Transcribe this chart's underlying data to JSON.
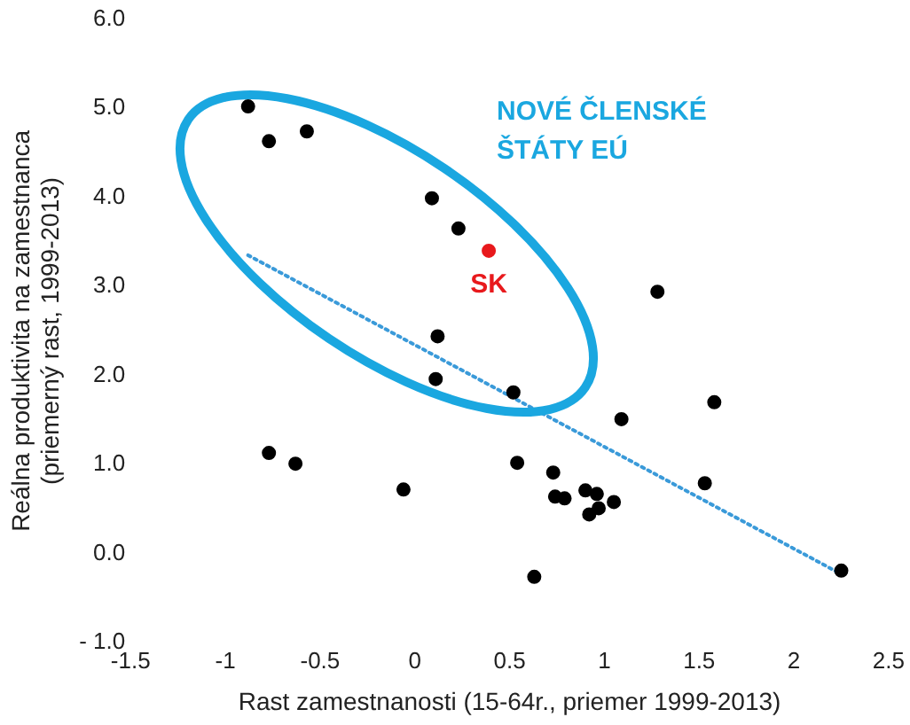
{
  "chart_data": {
    "type": "scatter",
    "xlabel": "Rast zamestnanosti (15-64r., priemer 1999-2013)",
    "ylabel": "Reálna produktivita na zamestnanca\n(priemerný rast, 1999-2013)",
    "xlim": [
      -1.5,
      2.5
    ],
    "xticks": [
      -1.5,
      -1,
      -0.5,
      0,
      0.5,
      1,
      1.5,
      2,
      2.5
    ],
    "ylim": [
      -1,
      6
    ],
    "yticks": [
      {
        "value": -1,
        "label": "- 1.0"
      },
      {
        "value": 0,
        "label": "0.0"
      },
      {
        "value": 1,
        "label": "1.0"
      },
      {
        "value": 2,
        "label": "2.0"
      },
      {
        "value": 3,
        "label": "3.0"
      },
      {
        "value": 4,
        "label": "4.0"
      },
      {
        "value": 5,
        "label": "5.0"
      },
      {
        "value": 6,
        "label": "6.0"
      }
    ],
    "grid": false,
    "legend": false,
    "marker": "circle",
    "series": [
      {
        "color": "#000000",
        "x": [
          -0.88,
          -0.77,
          -0.57,
          0.09,
          0.23,
          0.12,
          0.11,
          0.52,
          1.28,
          1.58,
          1.09,
          0.54,
          -0.06,
          0.73,
          0.74,
          0.79,
          0.9,
          0.96,
          0.97,
          0.92,
          1.05,
          1.53,
          0.63,
          2.25,
          -0.77,
          -0.63
        ],
        "values": [
          5.02,
          4.63,
          4.74,
          3.99,
          3.65,
          2.44,
          1.96,
          1.81,
          2.94,
          1.7,
          1.51,
          1.02,
          0.72,
          0.91,
          0.64,
          0.62,
          0.71,
          0.67,
          0.51,
          0.44,
          0.58,
          0.79,
          -0.26,
          -0.19,
          1.13,
          1.01
        ]
      },
      {
        "color": "#e8191c",
        "x": [
          0.39
        ],
        "values": [
          3.4
        ]
      },
      {
        "type": "line",
        "color": "#3a9ad9",
        "line_style": "dotted",
        "marker": "none",
        "x": [
          -0.88,
          2.25
        ],
        "values": [
          3.35,
          -0.23
        ]
      }
    ],
    "annotations": [
      "NOVÉ ČLENSKÉ\nŠTÁTY EÚ",
      {
        "text": "SK",
        "x": 0.39,
        "y": 3.4
      }
    ]
  }
}
